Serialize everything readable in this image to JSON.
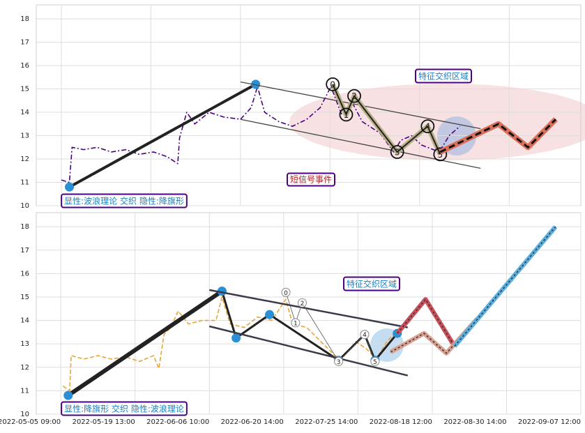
{
  "chart_data": [
    {
      "type": "line",
      "ylim": [
        10,
        18.6
      ],
      "yticks": [
        10,
        11,
        12,
        13,
        14,
        15,
        16,
        17,
        18
      ],
      "xlim": [
        -0.28,
        5.8
      ],
      "xticks": [
        0,
        1,
        2,
        3,
        4,
        5
      ],
      "grid": true,
      "annotations": [
        "特征交织区域",
        "短信号事件",
        "显性:波浪理论 交织 隐性:降旗形"
      ],
      "series": [
        {
          "color": "#4b0082",
          "width": 1.6,
          "dash": "7 3 2 3",
          "x": [
            0,
            0.09,
            0.12,
            0.25,
            0.4,
            0.56,
            0.72,
            0.87,
            1.03,
            1.18,
            1.3,
            1.32,
            1.4,
            1.49,
            1.65,
            1.81,
            2,
            2.12,
            2.19,
            2.27,
            2.43,
            2.58,
            2.74,
            2.89,
            3.01,
            3.13,
            3.25,
            3.36,
            3.56,
            3.71,
            3.79,
            3.91,
            4.02,
            4.22,
            4.33,
            4.45
          ],
          "values": [
            11.1,
            11.0,
            12.5,
            12.4,
            12.5,
            12.3,
            12.4,
            12.2,
            12.3,
            12.1,
            11.8,
            12.9,
            14.0,
            13.5,
            14.0,
            13.8,
            13.7,
            14.2,
            15.1,
            14.0,
            13.6,
            13.4,
            13.7,
            14.2,
            15.1,
            13.9,
            14.4,
            13.6,
            13.1,
            12.3,
            12.8,
            13.0,
            12.6,
            12.3,
            13.0,
            13.4
          ]
        },
        {
          "color": "#222222",
          "width": 4,
          "dots": true,
          "x": [
            0.09,
            2.17
          ],
          "values": [
            10.8,
            15.2
          ]
        },
        {
          "color": "#444444",
          "width": 1.3,
          "x": [
            2,
            4.68
          ],
          "values": [
            15.3,
            13.3
          ]
        },
        {
          "color": "#444444",
          "width": 1.3,
          "x": [
            2,
            4.68
          ],
          "values": [
            13.7,
            11.6
          ]
        },
        {
          "color": "#222222",
          "width": 2,
          "casing": "#b8b088",
          "point_labels": [
            "0",
            "1",
            "2",
            "3",
            "4",
            "5"
          ],
          "x": [
            3.03,
            3.18,
            3.27,
            3.75,
            4.09,
            4.23
          ],
          "values": [
            15.2,
            13.9,
            14.7,
            12.3,
            13.4,
            12.2
          ]
        },
        {
          "color": "#111111",
          "width": 3,
          "dash": "9 5",
          "casing": "#d9705a",
          "x": [
            4.23,
            4.88,
            5.21,
            5.52
          ],
          "values": [
            12.3,
            13.5,
            12.5,
            13.7
          ]
        }
      ]
    },
    {
      "type": "line",
      "ylim": [
        10,
        18.6
      ],
      "yticks": [
        10,
        11,
        12,
        13,
        14,
        15,
        16,
        17,
        18
      ],
      "xlim": [
        -0.33,
        7
      ],
      "grid": true,
      "xticks": [
        {
          "value": 0,
          "label": "2022-05-05 09:00"
        },
        {
          "value": 1,
          "label": "2022-05-19 13:00"
        },
        {
          "value": 2,
          "label": "2022-06-06 10:00"
        },
        {
          "value": 3,
          "label": "2022-06-20 14:00"
        },
        {
          "value": 4,
          "label": "2022-07-25 14:00"
        },
        {
          "value": 5,
          "label": "2022-08-18 12:00"
        },
        {
          "value": 6,
          "label": "2022-08-30 14:00"
        },
        {
          "value": 7,
          "label": "2022-09-07 12:00"
        }
      ],
      "annotations": [
        "特征交织区域",
        "显性:降旗形 交织 隐性:波浪理论"
      ],
      "series": [
        {
          "color": "#e8a33a",
          "width": 1.6,
          "dash": "6 3",
          "x": [
            0.03,
            0.12,
            0.14,
            0.31,
            0.5,
            0.68,
            0.87,
            1.06,
            1.25,
            1.32,
            1.39,
            1.48,
            1.58,
            1.72,
            1.9,
            2.09,
            2.17,
            2.28,
            2.47,
            2.65,
            2.84,
            3.03,
            3.12,
            3.31,
            3.5,
            3.69,
            3.78,
            3.97,
            4.11,
            4.25,
            4.39,
            4.48
          ],
          "values": [
            11.2,
            11.0,
            12.5,
            12.35,
            12.5,
            12.35,
            12.45,
            12.25,
            12.5,
            11.95,
            13.4,
            13.7,
            14.4,
            13.85,
            14.0,
            14.0,
            15.0,
            13.85,
            13.7,
            14.15,
            14.0,
            14.9,
            13.85,
            13.7,
            13.1,
            12.5,
            12.35,
            13.1,
            12.8,
            12.35,
            13.1,
            13.4
          ]
        },
        {
          "color": "#222222",
          "width": 6,
          "dots": true,
          "x": [
            0.1,
            2.17
          ],
          "values": [
            10.8,
            15.25
          ]
        },
        {
          "color": "#222222",
          "width": 3,
          "dots": true,
          "x": [
            2.17,
            2.36,
            2.81,
            3.74,
            4.09,
            4.23,
            4.53
          ],
          "values": [
            15.25,
            13.25,
            14.25,
            12.3,
            13.4,
            12.3,
            13.45
          ]
        },
        {
          "color": "#3a3a48",
          "width": 2.5,
          "x": [
            2,
            4.67
          ],
          "values": [
            15.3,
            13.7
          ]
        },
        {
          "color": "#3a3a48",
          "width": 2.5,
          "x": [
            2,
            4.67
          ],
          "values": [
            13.75,
            11.65
          ]
        },
        {
          "color": "#555555",
          "width": 0.8,
          "point_labels": [
            "0",
            "1",
            "2",
            "3",
            "4",
            "5"
          ],
          "small": true,
          "x": [
            3.03,
            3.16,
            3.25,
            3.74,
            4.09,
            4.23
          ],
          "values": [
            15.2,
            13.9,
            14.75,
            12.25,
            13.4,
            12.25
          ]
        },
        {
          "color": "#333333",
          "width": 1.5,
          "dash": "3 3",
          "casing": "#c9505a",
          "x": [
            4.53,
            4.91,
            5.3
          ],
          "values": [
            13.45,
            14.9,
            12.9
          ]
        },
        {
          "color": "#333333",
          "width": 1.5,
          "dash": "3 3",
          "casing": "#d9a090",
          "x": [
            4.44,
            4.89,
            5.19,
            5.6
          ],
          "values": [
            12.65,
            13.45,
            12.6,
            14.05
          ]
        },
        {
          "color": "#333333",
          "width": 1.5,
          "dash": "3 3",
          "casing": "#5aaee0",
          "x": [
            5.3,
            6.66
          ],
          "values": [
            12.9,
            18.0
          ]
        }
      ]
    }
  ]
}
